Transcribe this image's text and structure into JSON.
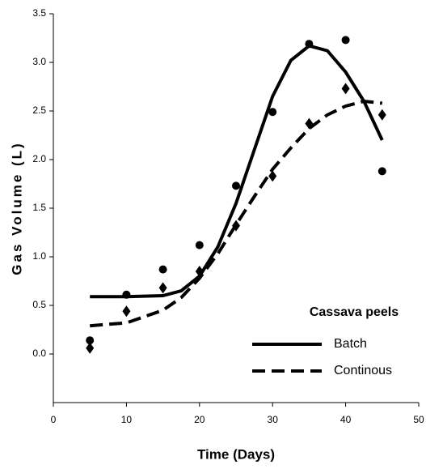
{
  "chart_data": {
    "type": "scatter",
    "xlabel": "Time (Days)",
    "ylabel": "Gas Volume (L)",
    "xlim": [
      0,
      50
    ],
    "xticks": [
      0,
      10,
      20,
      30,
      40,
      50
    ],
    "ylim": [
      -0.5,
      3.5
    ],
    "yticks": [
      {
        "value": 0,
        "label": "0.0"
      },
      0.5,
      {
        "value": 1,
        "label": "1.0"
      },
      1.5,
      {
        "value": 2,
        "label": "2.0"
      },
      2.5,
      {
        "value": 3,
        "label": "3.0"
      },
      3.5
    ],
    "legend_title": "Cassava peels",
    "legend": "lower right",
    "x": [
      5,
      10,
      15,
      20,
      25,
      30,
      35,
      40,
      45
    ],
    "series": [
      {
        "name": "Batch",
        "color": "#000000",
        "marker": "circle",
        "dash": "solid",
        "values": [
          0.14,
          0.61,
          0.87,
          1.12,
          1.73,
          2.49,
          3.19,
          3.23,
          1.88
        ],
        "fit_x": [
          5,
          10,
          15,
          17.5,
          20,
          22.5,
          25,
          27.5,
          30,
          32.5,
          35,
          37.5,
          40,
          42.5,
          45
        ],
        "fit_values": [
          0.59,
          0.59,
          0.6,
          0.65,
          0.8,
          1.1,
          1.55,
          2.1,
          2.65,
          3.02,
          3.17,
          3.12,
          2.9,
          2.6,
          2.2
        ]
      },
      {
        "name": "Continous",
        "color": "#000000",
        "marker": "diamond",
        "dash": "dashed",
        "values": [
          0.06,
          0.44,
          0.68,
          0.85,
          1.32,
          1.83,
          2.37,
          2.73,
          2.46
        ],
        "fit_x": [
          5,
          10,
          15,
          17.5,
          20,
          22.5,
          25,
          27.5,
          30,
          32.5,
          35,
          37.5,
          40,
          42.5,
          45
        ],
        "fit_values": [
          0.29,
          0.32,
          0.45,
          0.58,
          0.78,
          1.03,
          1.33,
          1.62,
          1.9,
          2.12,
          2.32,
          2.46,
          2.55,
          2.6,
          2.58
        ]
      }
    ]
  }
}
